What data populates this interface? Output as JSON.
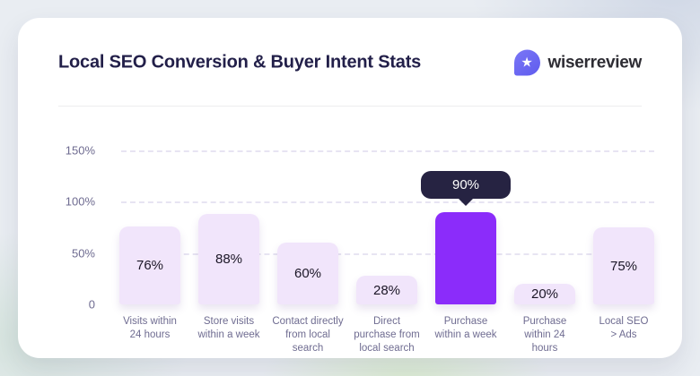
{
  "header": {
    "title": "Local SEO Conversion & Buyer Intent Stats",
    "brand": "wiserreview"
  },
  "chart_data": {
    "type": "bar",
    "title": "Local SEO Conversion & Buyer Intent Stats",
    "categories": [
      "Visits within 24 hours",
      "Store visits within a week",
      "Contact directly from local search",
      "Direct purchase from local search",
      "Purchase within a week",
      "Purchase within 24 hours",
      "Local SEO > Ads"
    ],
    "tick_labels": [
      "Visits within\n24 hours",
      "Store visits\nwithin a week",
      "Contact directly\nfrom local\nsearch",
      "Direct\npurchase from\nlocal search",
      "Purchase\nwithin a week",
      "Purchase\nwithin 24\nhours",
      "Local SEO\n> Ads"
    ],
    "values": [
      76,
      88,
      60,
      28,
      90,
      20,
      75
    ],
    "unit": "%",
    "value_labels": [
      "76%",
      "88%",
      "60%",
      "28%",
      "90%",
      "20%",
      "75%"
    ],
    "highlight_index": 4,
    "tooltip": {
      "text": "90%"
    },
    "y_ticks": [
      "0",
      "50%",
      "100%",
      "150%"
    ],
    "y_tick_values": [
      0,
      50,
      100,
      150
    ],
    "ylim": [
      0,
      156
    ],
    "grid": "horizontal-dashed",
    "legend": "none",
    "colors": {
      "bar": "#F1E5FB",
      "highlight": "#8B2CFA",
      "tooltip_bg": "#262342",
      "value_text": "#1B1626",
      "axis_text": "#6F6C91",
      "title_text": "#221F49",
      "brand_icon": "#6A67F2",
      "card_bg": "#FFFFFF",
      "page_bg": "#E9EDF2"
    }
  }
}
